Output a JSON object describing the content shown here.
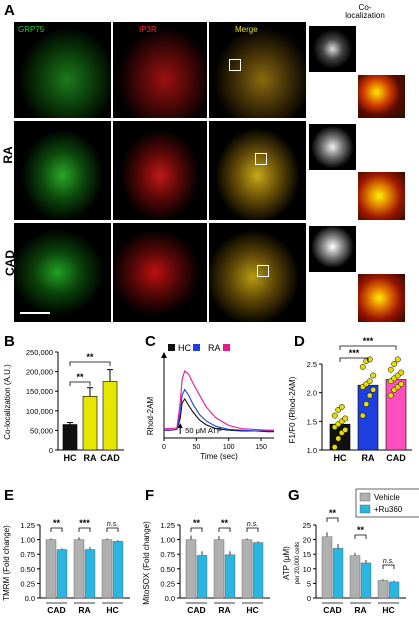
{
  "panels": {
    "A": {
      "letter": "A",
      "column_labels": [
        "GRP75",
        "IP3R",
        "Merge"
      ],
      "coloc_header": "Co-\nlocalization",
      "row_labels": [
        "RA",
        "CAD"
      ]
    },
    "B": {
      "letter": "B"
    },
    "C": {
      "letter": "C"
    },
    "D": {
      "letter": "D"
    },
    "E": {
      "letter": "E"
    },
    "F": {
      "letter": "F"
    },
    "G": {
      "letter": "G"
    }
  },
  "colors": {
    "HC": "#111111",
    "RA_blue": "#1f3fe0",
    "RA_pink": "#e8188a",
    "bar_yellow": "#e6e600",
    "grey": "#b0b0b0",
    "cyan": "#2ab5e0",
    "pink_dot": "#ff4fbf",
    "yellow_dot": "#e6dd00"
  },
  "chart_data": [
    {
      "id": "B",
      "type": "bar",
      "categories": [
        "HC",
        "RA",
        "CAD"
      ],
      "values": [
        65000,
        137000,
        175000
      ],
      "errors": [
        5000,
        22000,
        30000
      ],
      "ylabel": "Co-localization (A.U.)",
      "ylim": [
        0,
        250000
      ],
      "yticks": [
        "0",
        "50,000",
        "100,000",
        "150,000",
        "200,000",
        "250,000"
      ],
      "significance": [
        "**",
        "**"
      ]
    },
    {
      "id": "C",
      "type": "line",
      "legend": [
        "HC",
        "RA"
      ],
      "xlabel": "Time (sec)",
      "ylabel": "Rhod-2AM",
      "xticks": [
        "0",
        "50",
        "100",
        "150"
      ],
      "xlim": [
        0,
        170
      ],
      "annotation": "50 μM ATP",
      "series": [
        {
          "name": "HC",
          "x": [
            0,
            10,
            20,
            25,
            28,
            32,
            38,
            45,
            55,
            65,
            80,
            100,
            120,
            140,
            160,
            170
          ],
          "y": [
            0.1,
            0.1,
            0.11,
            0.25,
            0.45,
            0.5,
            0.42,
            0.33,
            0.23,
            0.17,
            0.12,
            0.1,
            0.09,
            0.09,
            0.08,
            0.08
          ]
        },
        {
          "name": "RA blue",
          "x": [
            0,
            10,
            20,
            25,
            28,
            32,
            38,
            45,
            55,
            65,
            80,
            100,
            120,
            140,
            160,
            170
          ],
          "y": [
            0.1,
            0.1,
            0.11,
            0.32,
            0.55,
            0.62,
            0.55,
            0.43,
            0.3,
            0.22,
            0.15,
            0.11,
            0.1,
            0.09,
            0.09,
            0.09
          ]
        },
        {
          "name": "RA pink",
          "x": [
            0,
            10,
            20,
            25,
            28,
            32,
            38,
            45,
            55,
            65,
            80,
            100,
            120,
            140,
            160,
            170
          ],
          "y": [
            0.12,
            0.12,
            0.13,
            0.45,
            0.75,
            0.86,
            0.82,
            0.7,
            0.55,
            0.4,
            0.26,
            0.16,
            0.12,
            0.11,
            0.1,
            0.1
          ]
        }
      ]
    },
    {
      "id": "D",
      "type": "scatter",
      "categories": [
        "HC",
        "RA",
        "CAD"
      ],
      "values": [
        1.45,
        2.13,
        2.23
      ],
      "ylabel": "F1/F0 (Rhod-2AM)",
      "ylim": [
        1.0,
        2.5
      ],
      "yticks": [
        "1.0",
        "1.5",
        "2.0",
        "2.5"
      ],
      "points": [
        [
          1.05,
          1.2,
          1.3,
          1.35,
          1.4,
          1.45,
          1.5,
          1.55,
          1.6,
          1.7,
          1.75
        ],
        [
          1.6,
          1.8,
          1.95,
          2.05,
          2.1,
          2.15,
          2.2,
          2.3,
          2.45,
          2.55,
          2.65
        ],
        [
          1.95,
          2.05,
          2.1,
          2.15,
          2.2,
          2.25,
          2.3,
          2.35,
          2.4,
          2.5,
          2.6
        ]
      ],
      "significance": [
        "***",
        "***"
      ]
    },
    {
      "id": "E",
      "type": "bar",
      "categories": [
        "CAD",
        "RA",
        "HC"
      ],
      "series": [
        {
          "name": "Vehicle",
          "values": [
            1.0,
            1.0,
            1.0
          ]
        },
        {
          "name": "+Ru360",
          "values": [
            0.83,
            0.83,
            0.97
          ]
        }
      ],
      "errors": [
        0.02,
        0.04,
        0.02
      ],
      "ylabel": "TMRM (Fold change)",
      "ylim": [
        0.0,
        1.25
      ],
      "yticks": [
        "0.0",
        "0.25",
        "0.50",
        "0.75",
        "1.00",
        "1.25"
      ],
      "significance": [
        "**",
        "***",
        "n.s."
      ]
    },
    {
      "id": "F",
      "type": "bar",
      "categories": [
        "CAD",
        "RA",
        "HC"
      ],
      "series": [
        {
          "name": "Vehicle",
          "values": [
            1.0,
            1.0,
            1.0
          ]
        },
        {
          "name": "+Ru360",
          "values": [
            0.73,
            0.74,
            0.95
          ]
        }
      ],
      "errors": [
        0.07,
        0.06,
        0.02
      ],
      "ylabel": "MitoSOX (Fold change)",
      "ylim": [
        0.0,
        1.25
      ],
      "yticks": [
        "0.0",
        "0.25",
        "0.50",
        "0.75",
        "1.00",
        "1.25"
      ],
      "significance": [
        "**",
        "**",
        "n.s."
      ]
    },
    {
      "id": "G",
      "type": "bar",
      "categories": [
        "CAD",
        "RA",
        "HC"
      ],
      "series": [
        {
          "name": "Vehicle",
          "values": [
            21.0,
            14.5,
            6.0
          ]
        },
        {
          "name": "+Ru360",
          "values": [
            17.0,
            12.0,
            5.5
          ]
        }
      ],
      "errors": [
        1.5,
        1.0,
        0.4
      ],
      "ylabel": "ATP (μM)",
      "ylabel2": "per 20,000 cells",
      "ylim": [
        0,
        25
      ],
      "yticks": [
        "0",
        "5",
        "10",
        "15",
        "20",
        "25"
      ],
      "legend": [
        "Vehicle",
        "+Ru360"
      ],
      "significance": [
        "**",
        "**",
        "n.s."
      ]
    }
  ]
}
